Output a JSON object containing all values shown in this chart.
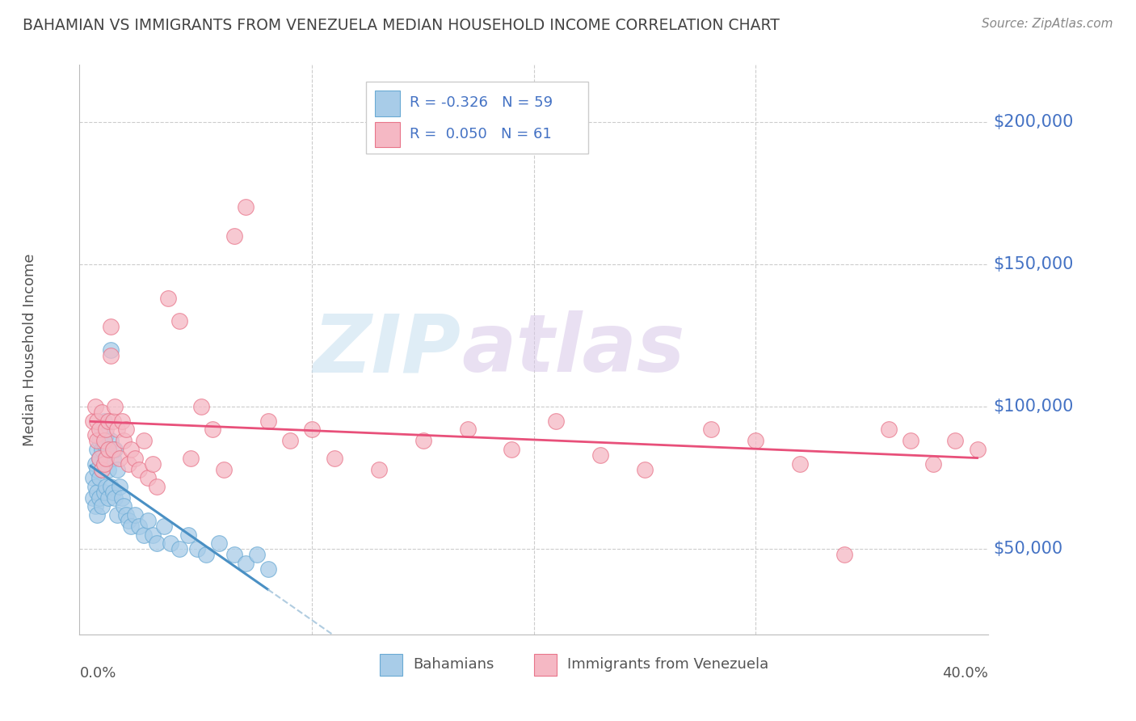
{
  "title": "BAHAMIAN VS IMMIGRANTS FROM VENEZUELA MEDIAN HOUSEHOLD INCOME CORRELATION CHART",
  "source": "Source: ZipAtlas.com",
  "ylabel": "Median Household Income",
  "watermark_zip": "ZIP",
  "watermark_atlas": "atlas",
  "legend_blue_r": "-0.326",
  "legend_blue_n": "59",
  "legend_pink_r": "0.050",
  "legend_pink_n": "61",
  "blue_color": "#a8cce8",
  "blue_edge": "#6aaad4",
  "pink_color": "#f5b8c4",
  "pink_edge": "#e8758a",
  "line_blue_color": "#4a90c4",
  "line_pink_color": "#e8507a",
  "line_dashed_color": "#b0cce0",
  "ytick_color": "#4472c4",
  "title_color": "#444444",
  "label_color": "#555555",
  "grid_color": "#cccccc",
  "xlim": [
    0.0,
    0.4
  ],
  "ylim": [
    20000,
    220000
  ],
  "blue_scatter_x": [
    0.001,
    0.001,
    0.002,
    0.002,
    0.002,
    0.003,
    0.003,
    0.003,
    0.003,
    0.004,
    0.004,
    0.004,
    0.004,
    0.005,
    0.005,
    0.005,
    0.005,
    0.006,
    0.006,
    0.006,
    0.006,
    0.007,
    0.007,
    0.007,
    0.008,
    0.008,
    0.008,
    0.009,
    0.009,
    0.009,
    0.01,
    0.01,
    0.011,
    0.011,
    0.012,
    0.012,
    0.013,
    0.014,
    0.015,
    0.016,
    0.017,
    0.018,
    0.02,
    0.022,
    0.024,
    0.026,
    0.028,
    0.03,
    0.033,
    0.036,
    0.04,
    0.044,
    0.048,
    0.052,
    0.058,
    0.065,
    0.07,
    0.075,
    0.08
  ],
  "blue_scatter_y": [
    75000,
    68000,
    80000,
    72000,
    65000,
    85000,
    78000,
    70000,
    62000,
    88000,
    82000,
    75000,
    68000,
    92000,
    85000,
    78000,
    65000,
    95000,
    87000,
    80000,
    70000,
    90000,
    82000,
    72000,
    85000,
    78000,
    68000,
    120000,
    88000,
    72000,
    82000,
    70000,
    85000,
    68000,
    78000,
    62000,
    72000,
    68000,
    65000,
    62000,
    60000,
    58000,
    62000,
    58000,
    55000,
    60000,
    55000,
    52000,
    58000,
    52000,
    50000,
    55000,
    50000,
    48000,
    52000,
    48000,
    45000,
    48000,
    43000
  ],
  "pink_scatter_x": [
    0.001,
    0.002,
    0.002,
    0.003,
    0.003,
    0.004,
    0.004,
    0.005,
    0.005,
    0.006,
    0.006,
    0.007,
    0.007,
    0.008,
    0.008,
    0.009,
    0.009,
    0.01,
    0.01,
    0.011,
    0.012,
    0.013,
    0.014,
    0.015,
    0.016,
    0.017,
    0.018,
    0.02,
    0.022,
    0.024,
    0.026,
    0.028,
    0.03,
    0.035,
    0.04,
    0.045,
    0.05,
    0.055,
    0.06,
    0.065,
    0.07,
    0.08,
    0.09,
    0.1,
    0.11,
    0.13,
    0.15,
    0.17,
    0.19,
    0.21,
    0.23,
    0.25,
    0.28,
    0.3,
    0.32,
    0.34,
    0.36,
    0.37,
    0.38,
    0.39,
    0.4
  ],
  "pink_scatter_y": [
    95000,
    100000,
    90000,
    88000,
    95000,
    82000,
    92000,
    78000,
    98000,
    88000,
    80000,
    92000,
    82000,
    95000,
    85000,
    128000,
    118000,
    95000,
    85000,
    100000,
    92000,
    82000,
    95000,
    88000,
    92000,
    80000,
    85000,
    82000,
    78000,
    88000,
    75000,
    80000,
    72000,
    138000,
    130000,
    82000,
    100000,
    92000,
    78000,
    160000,
    170000,
    95000,
    88000,
    92000,
    82000,
    78000,
    88000,
    92000,
    85000,
    95000,
    83000,
    78000,
    92000,
    88000,
    80000,
    48000,
    92000,
    88000,
    80000,
    88000,
    85000
  ],
  "blue_line_x0": 0.0,
  "blue_line_x1": 0.4,
  "pink_line_x0": 0.0,
  "pink_line_x1": 0.4,
  "legend_label_blue": "Bahamians",
  "legend_label_pink": "Immigrants from Venezuela"
}
